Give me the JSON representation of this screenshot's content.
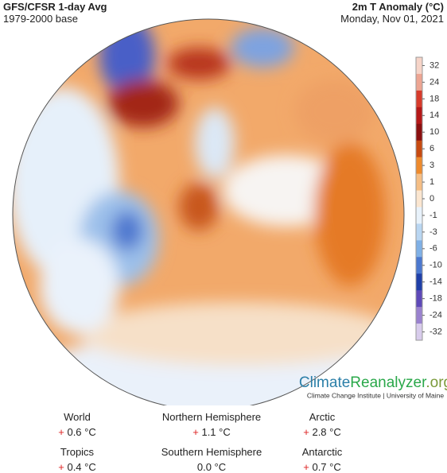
{
  "header": {
    "title": "GFS/CFSR 1-day Avg",
    "subtitle": "1979-2000 base",
    "variable": "2m T Anomaly (°C)",
    "date": "Monday, Nov 01, 2021"
  },
  "colorbar": {
    "labels": [
      32,
      24,
      18,
      14,
      10,
      6,
      3,
      1,
      0,
      -1,
      -3,
      -6,
      -10,
      -14,
      -18,
      -24,
      -32
    ],
    "colors": [
      "#f6d4c8",
      "#eda592",
      "#d73b2b",
      "#b51818",
      "#8a0f0f",
      "#c74a10",
      "#ee8a2c",
      "#f5be85",
      "#fbe6d0",
      "#e8f2fb",
      "#b9d6f2",
      "#7fb0e6",
      "#4b78cf",
      "#1f3fa8",
      "#5e49b8",
      "#9a82cf",
      "#d8ccec"
    ]
  },
  "logo": {
    "name_a": "Climate",
    "name_b": "Reanalyzer",
    "name_c": ".org",
    "tagline": "Climate Change Institute | University of Maine"
  },
  "stats": [
    {
      "label": "World",
      "sign": "+",
      "value": "0.6 °C"
    },
    {
      "label": "Northern Hemisphere",
      "sign": "+",
      "value": "1.1 °C"
    },
    {
      "label": "Arctic",
      "sign": "+",
      "value": "2.8 °C"
    },
    {
      "label": "Tropics",
      "sign": "+",
      "value": "0.4 °C"
    },
    {
      "label": "Southern Hemisphere",
      "value": "0.0 °C"
    },
    {
      "label": "Antarctic",
      "sign": "+",
      "value": "0.7 °C"
    }
  ]
}
